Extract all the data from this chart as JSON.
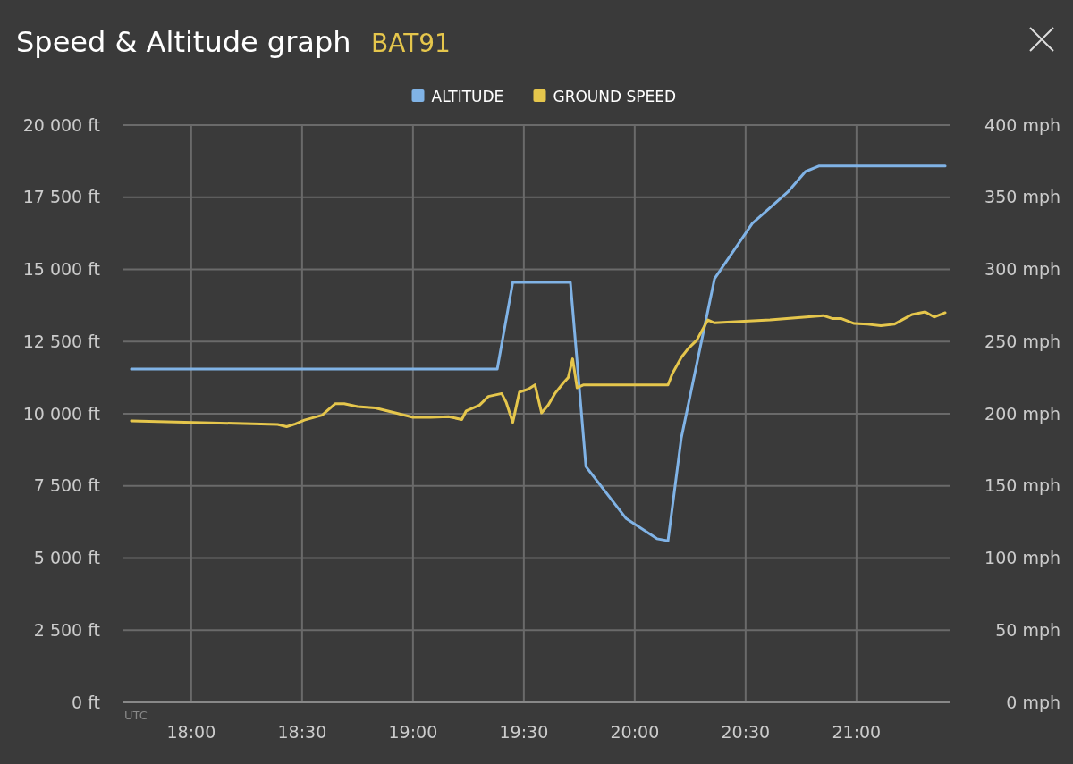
{
  "chart_data": {
    "type": "line",
    "title": "Speed & Altitude graph",
    "subtitle": "BAT91",
    "annotations": [
      "UTC"
    ],
    "xlim": [
      17.69,
      21.42
    ],
    "xticks": [
      {
        "value": 18,
        "label": "18:00"
      },
      {
        "value": 18.5,
        "label": "18:30"
      },
      {
        "value": 19,
        "label": "19:00"
      },
      {
        "value": 19.5,
        "label": "19:30"
      },
      {
        "value": 20,
        "label": "20:00"
      },
      {
        "value": 20.5,
        "label": "20:30"
      },
      {
        "value": 21,
        "label": "21:00"
      }
    ],
    "ylim": [
      0,
      20000
    ],
    "yticks": [
      {
        "value": 0,
        "label": "0 ft"
      },
      {
        "value": 2500,
        "label": "2 500 ft"
      },
      {
        "value": 5000,
        "label": "5 000 ft"
      },
      {
        "value": 7500,
        "label": "7 500 ft"
      },
      {
        "value": 10000,
        "label": "10 000 ft"
      },
      {
        "value": 12500,
        "label": "12 500 ft"
      },
      {
        "value": 15000,
        "label": "15 000 ft"
      },
      {
        "value": 17500,
        "label": "17 500 ft"
      },
      {
        "value": 20000,
        "label": "20 000 ft"
      }
    ],
    "y2lim": [
      0,
      400
    ],
    "y2ticks": [
      {
        "value": 0,
        "label": "0 mph"
      },
      {
        "value": 50,
        "label": "50 mph"
      },
      {
        "value": 100,
        "label": "100 mph"
      },
      {
        "value": 150,
        "label": "150 mph"
      },
      {
        "value": 200,
        "label": "200 mph"
      },
      {
        "value": 250,
        "label": "250 mph"
      },
      {
        "value": 300,
        "label": "300 mph"
      },
      {
        "value": 350,
        "label": "350 mph"
      },
      {
        "value": 400,
        "label": "400 mph"
      }
    ],
    "grid": true,
    "legend": "top",
    "marker": "none",
    "line_style": "solid",
    "series": [
      {
        "name": "ALTITUDE",
        "color": "#80b3e6",
        "x": [
          17.73,
          18.5,
          19.0,
          19.38,
          19.45,
          19.71,
          19.78,
          19.96,
          20.1,
          20.15,
          20.21,
          20.36,
          20.53,
          20.69,
          20.77,
          20.83,
          21.4
        ],
        "values": [
          11550,
          11550,
          11550,
          11550,
          14550,
          14550,
          8170,
          6380,
          5670,
          5600,
          9160,
          14680,
          16590,
          17680,
          18390,
          18580,
          18580
        ]
      },
      {
        "name": "GROUND SPEED",
        "color": "#e5c64c",
        "axis": "y2",
        "x": [
          17.73,
          18.39,
          18.43,
          18.47,
          18.51,
          18.59,
          18.65,
          18.69,
          18.75,
          18.83,
          18.92,
          19.0,
          19.08,
          19.16,
          19.22,
          19.24,
          19.3,
          19.34,
          19.4,
          19.42,
          19.45,
          19.48,
          19.52,
          19.55,
          19.58,
          19.61,
          19.64,
          19.68,
          19.7,
          19.72,
          19.74,
          19.77,
          20.15,
          20.17,
          20.21,
          20.24,
          20.28,
          20.33,
          20.36,
          20.61,
          20.85,
          20.89,
          20.93,
          20.99,
          21.05,
          21.11,
          21.17,
          21.25,
          21.31,
          21.35,
          21.4
        ],
        "values": [
          195,
          192.6,
          191,
          193,
          195.6,
          199,
          207,
          207,
          205,
          204,
          200.6,
          197.5,
          197.5,
          198,
          196,
          202,
          206,
          212,
          214,
          208,
          194,
          215,
          217,
          220,
          200.6,
          206,
          214,
          221.7,
          225,
          238,
          218,
          220,
          220,
          227.9,
          239,
          245,
          251,
          265,
          263,
          265,
          268,
          266,
          266,
          262.5,
          262,
          261,
          262,
          268.7,
          270.6,
          267,
          270
        ]
      }
    ]
  }
}
